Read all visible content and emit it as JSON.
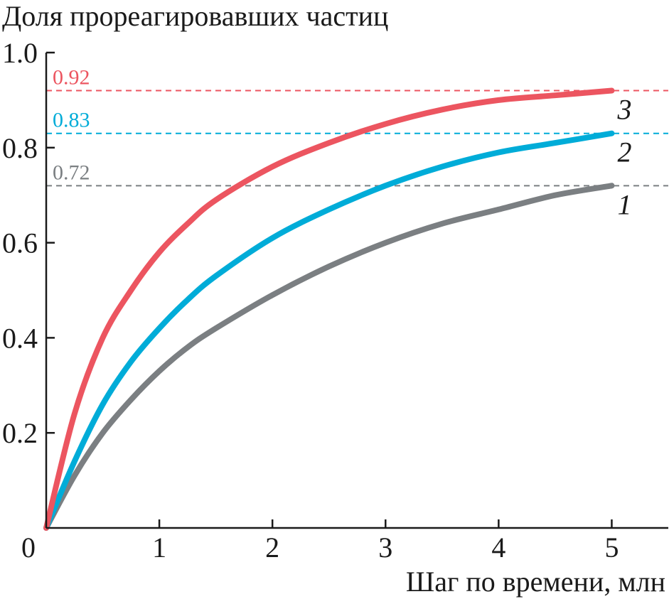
{
  "chart_data": {
    "type": "line",
    "title": "Доля прореагировавших частиц",
    "xlabel": "Шаг по времени, млн",
    "ylabel": "",
    "xlim": [
      0,
      5.5
    ],
    "ylim": [
      0,
      1.0
    ],
    "x_ticks": [
      {
        "value": 0,
        "label": "0"
      },
      {
        "value": 1,
        "label": "1"
      },
      {
        "value": 2,
        "label": "2"
      },
      {
        "value": 3,
        "label": "3"
      },
      {
        "value": 4,
        "label": "4"
      },
      {
        "value": 5,
        "label": "5"
      }
    ],
    "y_ticks": [
      {
        "value": 0.2,
        "label": "0.2"
      },
      {
        "value": 0.4,
        "label": "0.4"
      },
      {
        "value": 0.6,
        "label": "0.6"
      },
      {
        "value": 0.8,
        "label": "0.8"
      },
      {
        "value": 1.0,
        "label": "1.0"
      }
    ],
    "grid": false,
    "x": [
      0,
      0.25,
      0.5,
      0.75,
      1.0,
      1.25,
      1.5,
      2.0,
      2.5,
      3.0,
      3.5,
      4.0,
      4.5,
      5.0
    ],
    "series": [
      {
        "label": "1",
        "color": "#7b7f82",
        "values": [
          0,
          0.11,
          0.2,
          0.27,
          0.33,
          0.38,
          0.42,
          0.49,
          0.55,
          0.6,
          0.64,
          0.67,
          0.7,
          0.72
        ]
      },
      {
        "label": "2",
        "color": "#00acd8",
        "values": [
          0,
          0.14,
          0.26,
          0.35,
          0.42,
          0.48,
          0.53,
          0.61,
          0.67,
          0.72,
          0.76,
          0.79,
          0.81,
          0.83
        ]
      },
      {
        "label": "3",
        "color": "#ec5560",
        "values": [
          0,
          0.24,
          0.4,
          0.5,
          0.58,
          0.64,
          0.69,
          0.76,
          0.81,
          0.85,
          0.88,
          0.9,
          0.91,
          0.92
        ]
      }
    ],
    "reference_lines": [
      {
        "value": 0.92,
        "label": "0.92",
        "color": "#ec5560"
      },
      {
        "value": 0.83,
        "label": "0.83",
        "color": "#00acd8"
      },
      {
        "value": 0.72,
        "label": "0.72",
        "color": "#7b7f82"
      }
    ]
  }
}
